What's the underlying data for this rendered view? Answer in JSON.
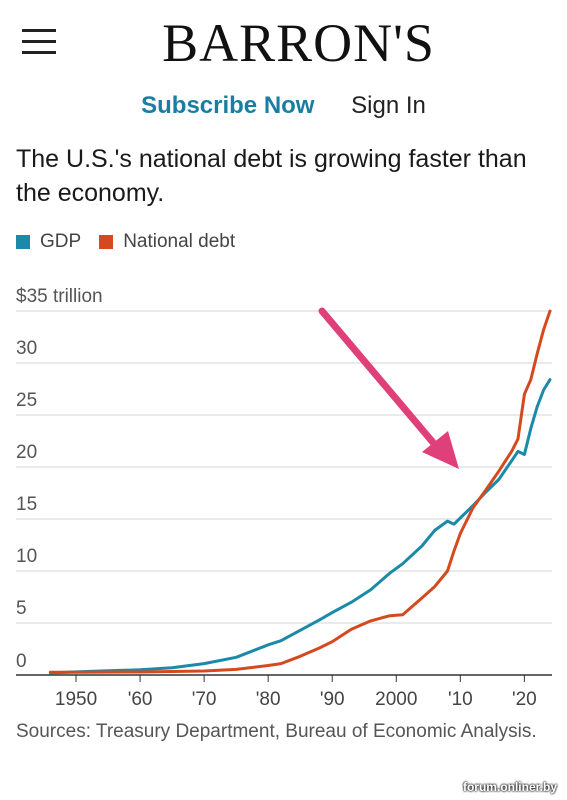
{
  "header": {
    "logo": "BARRON'S",
    "subscribe_label": "Subscribe Now",
    "signin_label": "Sign In"
  },
  "colors": {
    "gdp": "#1a8aa8",
    "debt": "#d44a1e",
    "accent": "#1a7ea3",
    "arrow": "#e0407a"
  },
  "chart_data": {
    "type": "line",
    "title": "The U.S.'s national debt is growing faster than the economy.",
    "xlabel": "",
    "ylabel": "",
    "xlim": [
      1945,
      2024
    ],
    "ylim": [
      0,
      35
    ],
    "x_ticks": [
      1950,
      1960,
      1970,
      1980,
      1990,
      2000,
      2010,
      2020
    ],
    "x_tick_labels": [
      "1950",
      "'60",
      "'70",
      "'80",
      "'90",
      "2000",
      "'10",
      "'20"
    ],
    "y_ticks": [
      0,
      5,
      10,
      15,
      20,
      25,
      30,
      35
    ],
    "y_tick_labels": [
      "0",
      "5",
      "10",
      "15",
      "20",
      "25",
      "30",
      "$35 trillion"
    ],
    "grid": true,
    "legend_position": "top-left",
    "series": [
      {
        "name": "GDP",
        "x": [
          1946,
          1950,
          1955,
          1960,
          1965,
          1970,
          1975,
          1980,
          1982,
          1985,
          1988,
          1990,
          1993,
          1996,
          1999,
          2001,
          2004,
          2006,
          2008,
          2009,
          2010,
          2012,
          2014,
          2016,
          2018,
          2019,
          2020,
          2021,
          2022,
          2023,
          2024
        ],
        "y": [
          0.2,
          0.3,
          0.4,
          0.5,
          0.7,
          1.1,
          1.7,
          2.9,
          3.3,
          4.3,
          5.3,
          6.0,
          7.0,
          8.2,
          9.8,
          10.7,
          12.4,
          13.9,
          14.8,
          14.5,
          15.1,
          16.3,
          17.6,
          18.8,
          20.6,
          21.5,
          21.2,
          23.7,
          25.8,
          27.4,
          28.4
        ]
      },
      {
        "name": "National debt",
        "x": [
          1946,
          1950,
          1960,
          1970,
          1975,
          1980,
          1982,
          1985,
          1988,
          1990,
          1993,
          1996,
          1999,
          2001,
          2004,
          2006,
          2008,
          2009,
          2010,
          2012,
          2014,
          2016,
          2018,
          2019,
          2020,
          2021,
          2022,
          2023,
          2024
        ],
        "y": [
          0.27,
          0.26,
          0.29,
          0.38,
          0.54,
          0.91,
          1.1,
          1.8,
          2.6,
          3.2,
          4.4,
          5.2,
          5.7,
          5.8,
          7.4,
          8.5,
          10.0,
          11.9,
          13.6,
          16.1,
          17.8,
          19.6,
          21.5,
          22.7,
          27.0,
          28.4,
          30.9,
          33.2,
          35.0
        ]
      }
    ]
  },
  "sources": "Sources: Treasury Department, Bureau of Economic Analysis.",
  "watermark": "forum.onliner.by"
}
